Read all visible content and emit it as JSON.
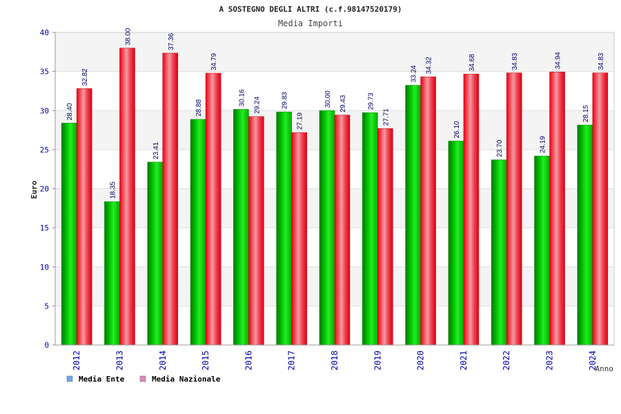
{
  "chart_data": {
    "type": "bar",
    "title": "A SOSTEGNO DEGLI ALTRI (c.f.98147520179)",
    "subtitle": "Media Importi",
    "xlabel": "Anno",
    "ylabel": "Euro",
    "ylim": [
      0,
      40
    ],
    "yticks": [
      0,
      5,
      10,
      15,
      20,
      25,
      30,
      35,
      40
    ],
    "grid": true,
    "legend_position": "bottom-left",
    "categories": [
      "2012",
      "2013",
      "2014",
      "2015",
      "2016",
      "2017",
      "2018",
      "2019",
      "2020",
      "2021",
      "2022",
      "2023",
      "2024"
    ],
    "series": [
      {
        "name": "Media Ente",
        "color": "#00cc00",
        "legend_color": "#66aaee",
        "values": [
          28.4,
          18.35,
          23.41,
          28.88,
          30.16,
          29.83,
          30.0,
          29.73,
          33.24,
          26.1,
          23.7,
          24.19,
          28.15
        ],
        "labels": [
          "28.40",
          "18.35",
          "23.41",
          "28.88",
          "30.16",
          "29.83",
          "30.00",
          "29.73",
          "33.24",
          "26.10",
          "23.70",
          "24.19",
          "28.15"
        ]
      },
      {
        "name": "Media Nazionale",
        "color": "#ee1122",
        "legend_color": "#dd88bb",
        "values": [
          32.82,
          38.0,
          37.36,
          34.79,
          29.24,
          27.19,
          29.43,
          27.71,
          34.32,
          34.68,
          34.83,
          34.94,
          34.83
        ],
        "labels": [
          "32.82",
          "38.00",
          "37.36",
          "34.79",
          "29.24",
          "27.19",
          "29.43",
          "27.71",
          "34.32",
          "34.68",
          "34.83",
          "34.94",
          "34.83"
        ]
      }
    ]
  }
}
